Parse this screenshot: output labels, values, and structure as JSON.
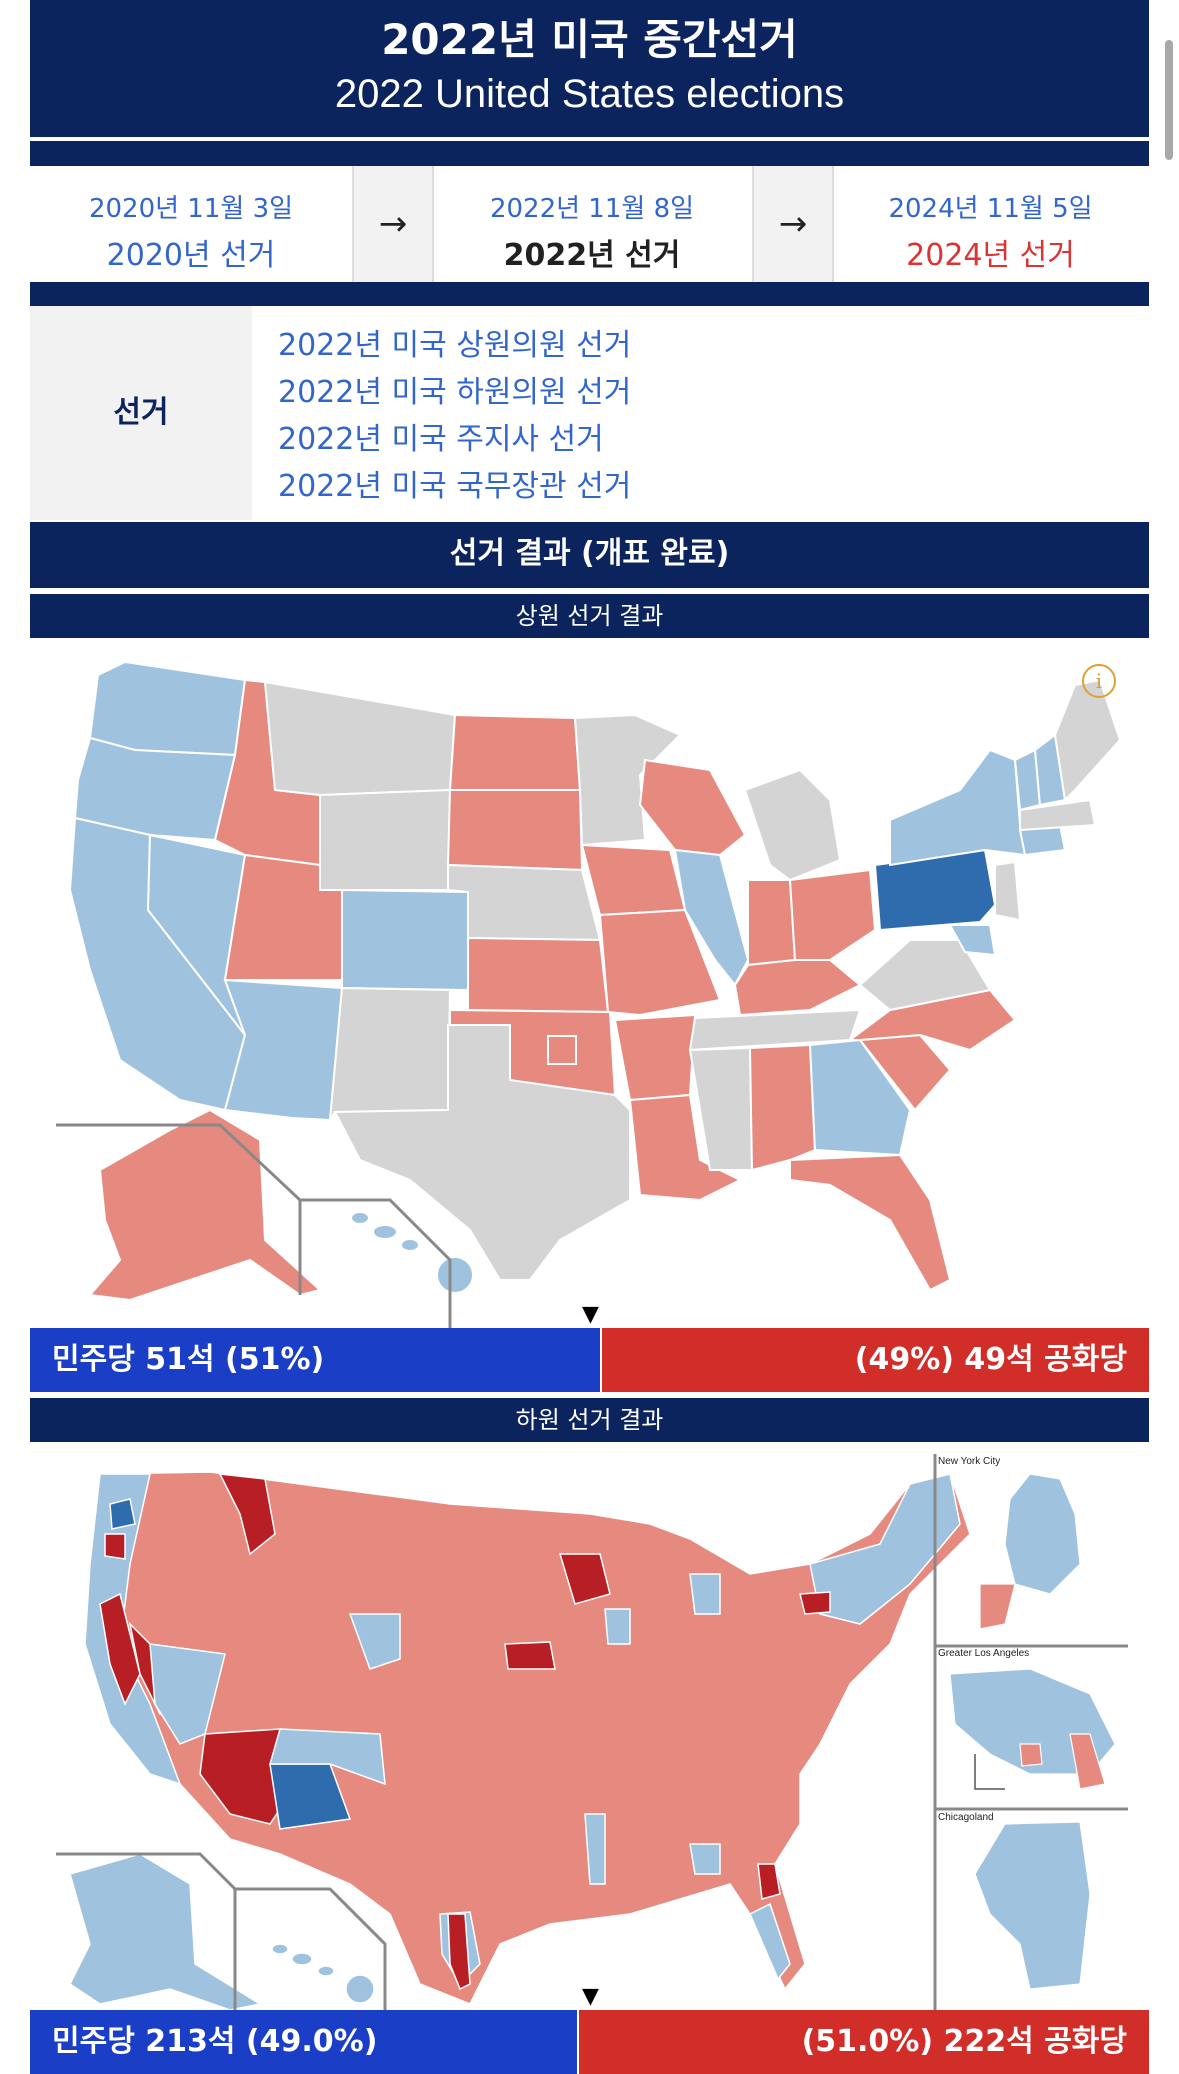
{
  "header": {
    "title_ko": "2022년 미국 중간선거",
    "title_en": "2022 United States elections"
  },
  "timeline": {
    "prev": {
      "date": "2020년 11월 3일",
      "label": "2020년 선거"
    },
    "arrow_left": "→",
    "current": {
      "date": "2022년 11월 8일",
      "label": "2022년 선거"
    },
    "arrow_right": "→",
    "next": {
      "date": "2024년 11월 5일",
      "label": "2024년 선거"
    }
  },
  "elections": {
    "label": "선거",
    "items": [
      "2022년 미국 상원의원 선거",
      "2022년 미국 하원의원 선거",
      "2022년 미국 주지사 선거",
      "2022년 미국 국무장관 선거"
    ]
  },
  "results": {
    "heading": "선거 결과 (개표 완료)",
    "senate": {
      "heading": "상원 선거 결과",
      "dem_label": "민주당 51석 (51%)",
      "rep_label": "(49%) 49석 공화당",
      "dem_share": 0.51
    },
    "house": {
      "heading": "하원 선거 결과",
      "dem_label": "민주당 213석 (49.0%)",
      "rep_label": "(51.0%) 222석 공화당",
      "dem_share": 0.49,
      "insets": [
        "New York City",
        "Greater Los Angeles",
        "Chicagoland"
      ]
    }
  },
  "icons": {
    "info": "i",
    "marker": "▼"
  },
  "colors": {
    "navy": "#0c245e",
    "dem_bar": "#1b3ec6",
    "rep_bar": "#d22e29",
    "dem_light": "#9fc3de",
    "dem_dark": "#2f6cad",
    "rep_light": "#e68a80",
    "rep_dark": "#b81f25",
    "no_election": "#d4d4d4"
  }
}
